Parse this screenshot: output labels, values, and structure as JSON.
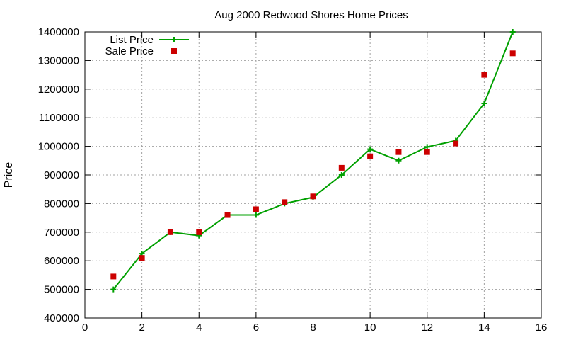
{
  "chart_data": {
    "type": "line",
    "title": "Aug 2000 Redwood Shores Home Prices",
    "xlabel": "",
    "ylabel": "Price",
    "xlim": [
      0,
      16
    ],
    "ylim": [
      400000,
      1400000
    ],
    "x_ticks": [
      0,
      2,
      4,
      6,
      8,
      10,
      12,
      14,
      16
    ],
    "y_ticks": [
      400000,
      500000,
      600000,
      700000,
      800000,
      900000,
      1000000,
      1100000,
      1200000,
      1300000,
      1400000
    ],
    "x_tick_labels": [
      "0",
      "2",
      "4",
      "6",
      "8",
      "10",
      "12",
      "14",
      "16"
    ],
    "y_tick_labels": [
      "400000",
      "500000",
      "600000",
      "700000",
      "800000",
      "900000",
      "1000000",
      "1100000",
      "1200000",
      "1300000",
      "1400000"
    ],
    "grid": true,
    "legend_position": "top-left",
    "series": [
      {
        "name": "List Price",
        "style": "lines+points",
        "marker": "plus",
        "color": "#00a000",
        "x": [
          1,
          2,
          3,
          4,
          5,
          6,
          7,
          8,
          9,
          10,
          11,
          12,
          13,
          14,
          15
        ],
        "y": [
          500000,
          625000,
          700000,
          688000,
          760000,
          760000,
          800000,
          822000,
          900000,
          990000,
          950000,
          998000,
          1020000,
          1150000,
          1400000
        ]
      },
      {
        "name": "Sale Price",
        "style": "points",
        "marker": "square",
        "color": "#cc0000",
        "x": [
          1,
          2,
          3,
          4,
          5,
          6,
          7,
          8,
          9,
          10,
          11,
          12,
          13,
          14,
          15
        ],
        "y": [
          545000,
          610000,
          700000,
          700000,
          760000,
          780000,
          805000,
          825000,
          925000,
          965000,
          980000,
          980000,
          1010000,
          1250000,
          1325000
        ]
      }
    ]
  }
}
